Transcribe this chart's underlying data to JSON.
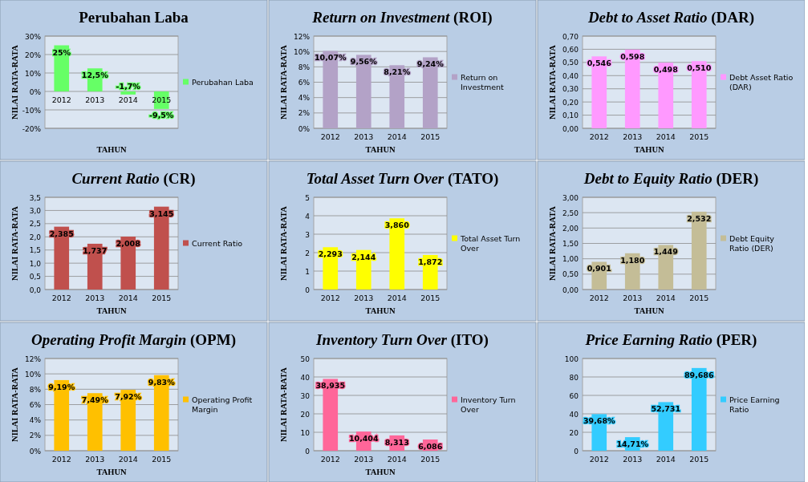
{
  "chart_data": [
    {
      "type": "bar",
      "title": "Perubahan Laba",
      "xlabel": "TAHUN",
      "ylabel": "NILAI RATA-RATA",
      "categories": [
        "2012",
        "2013",
        "2014",
        "2015"
      ],
      "series": [
        {
          "name": "Perubahan Laba",
          "color": "#66ff66",
          "values": [
            25,
            12.5,
            -1.7,
            -9.5
          ],
          "value_labels": [
            "25%",
            "12,5%",
            "-1,7%",
            "-9,5%"
          ]
        }
      ],
      "ylim": [
        -20,
        30
      ],
      "yticks": [
        {
          "value": -20,
          "label": "-20%"
        },
        {
          "value": -10,
          "label": "-10%"
        },
        {
          "value": 0,
          "label": "0%"
        },
        {
          "value": 10,
          "label": "10%"
        },
        {
          "value": 20,
          "label": "20%"
        },
        {
          "value": 30,
          "label": "30%"
        }
      ],
      "grid": "y",
      "legend": "right"
    },
    {
      "type": "bar",
      "title": "Return on Investment (ROI)",
      "xlabel": "TAHUN",
      "ylabel": "NILAI RATA-RATA",
      "categories": [
        "2012",
        "2013",
        "2014",
        "2015"
      ],
      "series": [
        {
          "name": "Return on Investment",
          "color": "#b3a2c7",
          "values": [
            10.07,
            9.56,
            8.21,
            9.24
          ],
          "value_labels": [
            "10,07%",
            "9,56%",
            "8,21%",
            "9,24%"
          ]
        }
      ],
      "ylim": [
        0,
        12
      ],
      "yticks": [
        {
          "value": 0,
          "label": "0%"
        },
        {
          "value": 2,
          "label": "2%"
        },
        {
          "value": 4,
          "label": "4%"
        },
        {
          "value": 6,
          "label": "6%"
        },
        {
          "value": 8,
          "label": "8%"
        },
        {
          "value": 10,
          "label": "10%"
        },
        {
          "value": 12,
          "label": "12%"
        }
      ],
      "grid": "y",
      "legend": "right"
    },
    {
      "type": "bar",
      "title": "Debt to Asset Ratio (DAR)",
      "xlabel": "TAHUN",
      "ylabel": "NILAI RATA-RATA",
      "categories": [
        "2012",
        "2013",
        "2014",
        "2015"
      ],
      "series": [
        {
          "name": "Debt Asset Ratio (DAR)",
          "color": "#ff99ff",
          "values": [
            0.546,
            0.598,
            0.498,
            0.51
          ],
          "value_labels": [
            "0,546",
            "0,598",
            "0,498",
            "0,510"
          ]
        }
      ],
      "ylim": [
        0,
        0.7
      ],
      "yticks": [
        {
          "value": 0,
          "label": "0,00"
        },
        {
          "value": 0.1,
          "label": "0,10"
        },
        {
          "value": 0.2,
          "label": "0,20"
        },
        {
          "value": 0.3,
          "label": "0,30"
        },
        {
          "value": 0.4,
          "label": "0,40"
        },
        {
          "value": 0.5,
          "label": "0,50"
        },
        {
          "value": 0.6,
          "label": "0,60"
        },
        {
          "value": 0.7,
          "label": "0,70"
        }
      ],
      "grid": "y",
      "legend": "right"
    },
    {
      "type": "bar",
      "title": "Current Ratio (CR)",
      "xlabel": "TAHUN",
      "ylabel": "NILAI RATA-RATA",
      "categories": [
        "2012",
        "2013",
        "2014",
        "2015"
      ],
      "series": [
        {
          "name": "Current Ratio",
          "color": "#c0504d",
          "values": [
            2.385,
            1.737,
            2.008,
            3.145
          ],
          "value_labels": [
            "2,385",
            "1,737",
            "2,008",
            "3,145"
          ]
        }
      ],
      "ylim": [
        0,
        3.5
      ],
      "yticks": [
        {
          "value": 0,
          "label": "0,0"
        },
        {
          "value": 0.5,
          "label": "0,5"
        },
        {
          "value": 1,
          "label": "1,0"
        },
        {
          "value": 1.5,
          "label": "1,5"
        },
        {
          "value": 2,
          "label": "2,0"
        },
        {
          "value": 2.5,
          "label": "2,5"
        },
        {
          "value": 3,
          "label": "3,0"
        },
        {
          "value": 3.5,
          "label": "3,5"
        }
      ],
      "grid": "y",
      "legend": "right"
    },
    {
      "type": "bar",
      "title": "Total Asset Turn Over (TATO)",
      "xlabel": "TAHUN",
      "ylabel": "NILAI RATA-RATA",
      "categories": [
        "2012",
        "2013",
        "2014",
        "2015"
      ],
      "series": [
        {
          "name": "Total Asset Turn Over",
          "color": "#ffff00",
          "values": [
            2.293,
            2.144,
            3.86,
            1.872
          ],
          "value_labels": [
            "2,293",
            "2,144",
            "3,860",
            "1,872"
          ]
        }
      ],
      "ylim": [
        0,
        5
      ],
      "yticks": [
        0,
        1,
        2,
        3,
        4,
        5
      ],
      "grid": "y",
      "legend": "right"
    },
    {
      "type": "bar",
      "title": "Debt to Equity Ratio (DER)",
      "xlabel": "TAHUN",
      "ylabel": "NILAI RATA-RATA",
      "categories": [
        "2012",
        "2013",
        "2014",
        "2015"
      ],
      "series": [
        {
          "name": "Debt Equity Ratio (DER)",
          "color": "#c4bd97",
          "values": [
            0.901,
            1.18,
            1.449,
            2.532
          ],
          "value_labels": [
            "0,901",
            "1,180",
            "1,449",
            "2,532"
          ]
        }
      ],
      "ylim": [
        0,
        3
      ],
      "yticks": [
        {
          "value": 0,
          "label": "0,00"
        },
        {
          "value": 0.5,
          "label": "0,50"
        },
        {
          "value": 1,
          "label": "1,00"
        },
        {
          "value": 1.5,
          "label": "1,50"
        },
        {
          "value": 2,
          "label": "2,00"
        },
        {
          "value": 2.5,
          "label": "2,50"
        },
        {
          "value": 3,
          "label": "3,00"
        }
      ],
      "grid": "y",
      "legend": "right"
    },
    {
      "type": "bar",
      "title": "Operating Profit Margin (OPM)",
      "xlabel": "TAHUN",
      "ylabel": "NILAI RATA-RATA",
      "categories": [
        "2012",
        "2013",
        "2014",
        "2015"
      ],
      "series": [
        {
          "name": "Operating Profit Margin",
          "color": "#ffc000",
          "values": [
            9.19,
            7.49,
            7.92,
            9.83
          ],
          "value_labels": [
            "9,19%",
            "7,49%",
            "7,92%",
            "9,83%"
          ]
        }
      ],
      "ylim": [
        0,
        12
      ],
      "yticks": [
        {
          "value": 0,
          "label": "0%"
        },
        {
          "value": 2,
          "label": "2%"
        },
        {
          "value": 4,
          "label": "4%"
        },
        {
          "value": 6,
          "label": "6%"
        },
        {
          "value": 8,
          "label": "8%"
        },
        {
          "value": 10,
          "label": "10%"
        },
        {
          "value": 12,
          "label": "12%"
        }
      ],
      "grid": "y",
      "legend": "right"
    },
    {
      "type": "bar",
      "title": "Inventory Turn Over (ITO)",
      "xlabel": "TAHUN",
      "ylabel": "NILAI RATA-RATA",
      "categories": [
        "2012",
        "2013",
        "2014",
        "2015"
      ],
      "series": [
        {
          "name": "Inventory Turn Over",
          "color": "#ff6699",
          "values": [
            38.935,
            10.404,
            8.313,
            6.086
          ],
          "value_labels": [
            "38,935",
            "10,404",
            "8,313",
            "6,086"
          ]
        }
      ],
      "ylim": [
        0,
        50
      ],
      "yticks": [
        0,
        10,
        20,
        30,
        40,
        50
      ],
      "grid": "y",
      "legend": "right"
    },
    {
      "type": "bar",
      "title": "Price Earning Ratio (PER)",
      "categories": [
        "2012",
        "2013",
        "2014",
        "2015"
      ],
      "series": [
        {
          "name": "Price Earning Ratio",
          "color": "#33ccff",
          "values": [
            39.68,
            14.71,
            52.731,
            89.686
          ],
          "value_labels": [
            "39,68%",
            "14,71%",
            "52,731",
            "89,686"
          ]
        }
      ],
      "ylim": [
        0,
        100
      ],
      "yticks": [
        0,
        20,
        40,
        60,
        80,
        100
      ],
      "grid": "y",
      "legend": "right"
    }
  ]
}
